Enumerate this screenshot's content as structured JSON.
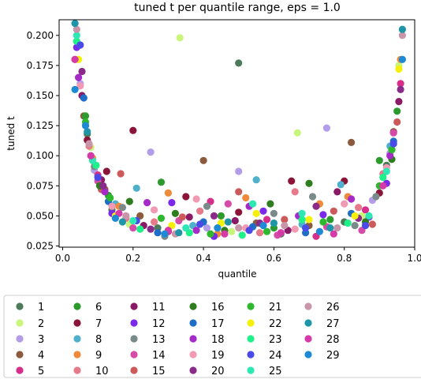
{
  "chart_data": {
    "type": "scatter",
    "title": "tuned t per quantile range, eps = 1.0",
    "xlabel": "quantile",
    "ylabel": "tuned t",
    "xlim": [
      -0.01,
      1.0
    ],
    "ylim": [
      0.024,
      0.213
    ],
    "xticks": [
      0.0,
      0.2,
      0.4,
      0.6,
      0.8,
      1.0
    ],
    "xtick_labels": [
      "0.0",
      "0.2",
      "0.4",
      "0.6",
      "0.8",
      "1.0"
    ],
    "yticks": [
      0.025,
      0.05,
      0.075,
      0.1,
      0.125,
      0.15,
      0.175,
      0.2
    ],
    "ytick_labels": [
      "0.025",
      "0.050",
      "0.075",
      "0.100",
      "0.125",
      "0.150",
      "0.175",
      "0.200"
    ],
    "grid": false,
    "legend_position": "below",
    "series": [
      {
        "name": "1",
        "color": "#4d7a5a",
        "points": [
          [
            0.04,
            0.195
          ],
          [
            0.07,
            0.118
          ],
          [
            0.14,
            0.055
          ],
          [
            0.27,
            0.04
          ],
          [
            0.5,
            0.177
          ],
          [
            0.62,
            0.035
          ],
          [
            0.8,
            0.045
          ],
          [
            0.92,
            0.092
          ]
        ]
      },
      {
        "name": "2",
        "color": "#c8f57a",
        "points": [
          [
            0.045,
            0.18
          ],
          [
            0.08,
            0.107
          ],
          [
            0.19,
            0.043
          ],
          [
            0.333,
            0.198
          ],
          [
            0.48,
            0.037
          ],
          [
            0.667,
            0.119
          ],
          [
            0.85,
            0.05
          ],
          [
            0.955,
            0.175
          ]
        ]
      },
      {
        "name": "3",
        "color": "#b39ce8",
        "points": [
          [
            0.05,
            0.16
          ],
          [
            0.09,
            0.088
          ],
          [
            0.25,
            0.103
          ],
          [
            0.41,
            0.04
          ],
          [
            0.5,
            0.087
          ],
          [
            0.75,
            0.123
          ],
          [
            0.88,
            0.063
          ],
          [
            0.93,
            0.102
          ]
        ]
      },
      {
        "name": "4",
        "color": "#8c5a3c",
        "points": [
          [
            0.06,
            0.133
          ],
          [
            0.12,
            0.072
          ],
          [
            0.22,
            0.05
          ],
          [
            0.4,
            0.096
          ],
          [
            0.55,
            0.044
          ],
          [
            0.7,
            0.042
          ],
          [
            0.82,
            0.111
          ],
          [
            0.94,
            0.12
          ]
        ]
      },
      {
        "name": "5",
        "color": "#d62e8a",
        "points": [
          [
            0.035,
            0.18
          ],
          [
            0.1,
            0.084
          ],
          [
            0.3,
            0.037
          ],
          [
            0.42,
            0.062
          ],
          [
            0.58,
            0.047
          ],
          [
            0.72,
            0.033
          ],
          [
            0.86,
            0.055
          ],
          [
            0.96,
            0.16
          ]
        ]
      },
      {
        "name": "6",
        "color": "#2c9a2c",
        "points": [
          [
            0.065,
            0.133
          ],
          [
            0.13,
            0.067
          ],
          [
            0.28,
            0.078
          ],
          [
            0.45,
            0.05
          ],
          [
            0.6,
            0.04
          ],
          [
            0.76,
            0.047
          ],
          [
            0.9,
            0.096
          ],
          [
            0.95,
            0.137
          ]
        ]
      },
      {
        "name": "7",
        "color": "#8a1538",
        "points": [
          [
            0.07,
            0.113
          ],
          [
            0.125,
            0.087
          ],
          [
            0.2,
            0.121
          ],
          [
            0.35,
            0.066
          ],
          [
            0.5,
            0.053
          ],
          [
            0.65,
            0.079
          ],
          [
            0.8,
            0.079
          ],
          [
            0.9,
            0.069
          ]
        ]
      },
      {
        "name": "8",
        "color": "#4fb0cc",
        "points": [
          [
            0.08,
            0.1
          ],
          [
            0.15,
            0.06
          ],
          [
            0.21,
            0.073
          ],
          [
            0.37,
            0.042
          ],
          [
            0.55,
            0.08
          ],
          [
            0.68,
            0.043
          ],
          [
            0.79,
            0.076
          ],
          [
            0.93,
            0.108
          ]
        ]
      },
      {
        "name": "9",
        "color": "#ee8a3a",
        "points": [
          [
            0.085,
            0.098
          ],
          [
            0.16,
            0.058
          ],
          [
            0.3,
            0.069
          ],
          [
            0.44,
            0.035
          ],
          [
            0.52,
            0.065
          ],
          [
            0.73,
            0.06
          ],
          [
            0.81,
            0.066
          ],
          [
            0.96,
            0.18
          ]
        ]
      },
      {
        "name": "10",
        "color": "#e77a8a",
        "points": [
          [
            0.075,
            0.108
          ],
          [
            0.18,
            0.048
          ],
          [
            0.26,
            0.045
          ],
          [
            0.39,
            0.054
          ],
          [
            0.56,
            0.036
          ],
          [
            0.66,
            0.07
          ],
          [
            0.84,
            0.057
          ],
          [
            0.91,
            0.085
          ]
        ]
      },
      {
        "name": "11",
        "color": "#8a1a66",
        "points": [
          [
            0.055,
            0.15
          ],
          [
            0.11,
            0.08
          ],
          [
            0.23,
            0.042
          ],
          [
            0.36,
            0.049
          ],
          [
            0.49,
            0.046
          ],
          [
            0.64,
            0.038
          ],
          [
            0.78,
            0.07
          ],
          [
            0.955,
            0.145
          ]
        ]
      },
      {
        "name": "12",
        "color": "#7a2ae8",
        "points": [
          [
            0.04,
            0.19
          ],
          [
            0.14,
            0.052
          ],
          [
            0.31,
            0.061
          ],
          [
            0.43,
            0.033
          ],
          [
            0.57,
            0.054
          ],
          [
            0.74,
            0.051
          ],
          [
            0.87,
            0.049
          ],
          [
            0.92,
            0.077
          ]
        ]
      },
      {
        "name": "13",
        "color": "#7a8a8a",
        "points": [
          [
            0.09,
            0.091
          ],
          [
            0.17,
            0.057
          ],
          [
            0.29,
            0.033
          ],
          [
            0.41,
            0.058
          ],
          [
            0.6,
            0.052
          ],
          [
            0.71,
            0.066
          ],
          [
            0.83,
            0.042
          ],
          [
            0.89,
            0.066
          ]
        ]
      },
      {
        "name": "14",
        "color": "#d64aa8",
        "points": [
          [
            0.1,
            0.079
          ],
          [
            0.2,
            0.04
          ],
          [
            0.33,
            0.046
          ],
          [
            0.47,
            0.06
          ],
          [
            0.61,
            0.034
          ],
          [
            0.75,
            0.041
          ],
          [
            0.85,
            0.038
          ],
          [
            0.94,
            0.119
          ]
        ]
      },
      {
        "name": "15",
        "color": "#cc5a5a",
        "points": [
          [
            0.11,
            0.072
          ],
          [
            0.165,
            0.085
          ],
          [
            0.34,
            0.049
          ],
          [
            0.5,
            0.07
          ],
          [
            0.63,
            0.047
          ],
          [
            0.77,
            0.054
          ],
          [
            0.88,
            0.043
          ],
          [
            0.95,
            0.128
          ]
        ]
      },
      {
        "name": "16",
        "color": "#2e7d1e",
        "points": [
          [
            0.105,
            0.075
          ],
          [
            0.19,
            0.062
          ],
          [
            0.32,
            0.052
          ],
          [
            0.46,
            0.038
          ],
          [
            0.59,
            0.06
          ],
          [
            0.7,
            0.077
          ],
          [
            0.86,
            0.045
          ],
          [
            0.935,
            0.097
          ]
        ]
      },
      {
        "name": "17",
        "color": "#1e6ec8",
        "points": [
          [
            0.06,
            0.148
          ],
          [
            0.13,
            0.062
          ],
          [
            0.27,
            0.036
          ],
          [
            0.4,
            0.045
          ],
          [
            0.54,
            0.041
          ],
          [
            0.69,
            0.036
          ],
          [
            0.82,
            0.052
          ],
          [
            0.94,
            0.112
          ]
        ]
      },
      {
        "name": "18",
        "color": "#a52ac8",
        "points": [
          [
            0.045,
            0.165
          ],
          [
            0.12,
            0.07
          ],
          [
            0.24,
            0.061
          ],
          [
            0.38,
            0.038
          ],
          [
            0.53,
            0.058
          ],
          [
            0.67,
            0.05
          ],
          [
            0.82,
            0.064
          ],
          [
            0.93,
            0.1
          ]
        ]
      },
      {
        "name": "19",
        "color": "#f29ab4",
        "points": [
          [
            0.05,
            0.158
          ],
          [
            0.14,
            0.058
          ],
          [
            0.26,
            0.055
          ],
          [
            0.38,
            0.064
          ],
          [
            0.52,
            0.04
          ],
          [
            0.66,
            0.039
          ],
          [
            0.8,
            0.06
          ],
          [
            0.92,
            0.09
          ]
        ]
      },
      {
        "name": "20",
        "color": "#8a2a8a",
        "points": [
          [
            0.055,
            0.17
          ],
          [
            0.115,
            0.075
          ],
          [
            0.25,
            0.039
          ],
          [
            0.43,
            0.05
          ],
          [
            0.56,
            0.044
          ],
          [
            0.72,
            0.058
          ],
          [
            0.84,
            0.048
          ],
          [
            0.96,
            0.155
          ]
        ]
      },
      {
        "name": "21",
        "color": "#2eb82e",
        "points": [
          [
            0.065,
            0.128
          ],
          [
            0.135,
            0.065
          ],
          [
            0.28,
            0.048
          ],
          [
            0.42,
            0.035
          ],
          [
            0.58,
            0.037
          ],
          [
            0.74,
            0.045
          ],
          [
            0.9,
            0.075
          ],
          [
            0.935,
            0.105
          ]
        ]
      },
      {
        "name": "22",
        "color": "#f5f00a",
        "points": [
          [
            0.045,
            0.18
          ],
          [
            0.15,
            0.05
          ],
          [
            0.31,
            0.042
          ],
          [
            0.45,
            0.044
          ],
          [
            0.55,
            0.052
          ],
          [
            0.7,
            0.047
          ],
          [
            0.83,
            0.05
          ],
          [
            0.955,
            0.172
          ]
        ]
      },
      {
        "name": "23",
        "color": "#1ef08a",
        "points": [
          [
            0.04,
            0.195
          ],
          [
            0.095,
            0.092
          ],
          [
            0.22,
            0.039
          ],
          [
            0.36,
            0.036
          ],
          [
            0.51,
            0.034
          ],
          [
            0.68,
            0.047
          ],
          [
            0.81,
            0.044
          ],
          [
            0.91,
            0.082
          ]
        ]
      },
      {
        "name": "24",
        "color": "#4a4ae8",
        "points": [
          [
            0.05,
            0.192
          ],
          [
            0.1,
            0.082
          ],
          [
            0.21,
            0.046
          ],
          [
            0.39,
            0.043
          ],
          [
            0.53,
            0.038
          ],
          [
            0.69,
            0.04
          ],
          [
            0.86,
            0.042
          ],
          [
            0.94,
            0.11
          ]
        ]
      },
      {
        "name": "25",
        "color": "#2ee8b4",
        "points": [
          [
            0.04,
            0.2
          ],
          [
            0.085,
            0.096
          ],
          [
            0.2,
            0.046
          ],
          [
            0.35,
            0.04
          ],
          [
            0.54,
            0.06
          ],
          [
            0.68,
            0.052
          ],
          [
            0.87,
            0.05
          ],
          [
            0.92,
            0.087
          ]
        ]
      },
      {
        "name": "26",
        "color": "#c896a8",
        "points": [
          [
            0.04,
            0.205
          ],
          [
            0.075,
            0.11
          ],
          [
            0.18,
            0.05
          ],
          [
            0.32,
            0.035
          ],
          [
            0.5,
            0.04
          ],
          [
            0.63,
            0.042
          ],
          [
            0.78,
            0.04
          ],
          [
            0.965,
            0.2
          ]
        ]
      },
      {
        "name": "27",
        "color": "#1e96a8",
        "points": [
          [
            0.035,
            0.21
          ],
          [
            0.07,
            0.12
          ],
          [
            0.17,
            0.045
          ],
          [
            0.33,
            0.036
          ],
          [
            0.47,
            0.045
          ],
          [
            0.6,
            0.044
          ],
          [
            0.76,
            0.04
          ],
          [
            0.965,
            0.205
          ]
        ]
      },
      {
        "name": "28",
        "color": "#d63aa8",
        "points": [
          [
            0.035,
            0.18
          ],
          [
            0.08,
            0.1
          ],
          [
            0.16,
            0.052
          ],
          [
            0.3,
            0.038
          ],
          [
            0.46,
            0.035
          ],
          [
            0.62,
            0.036
          ],
          [
            0.77,
            0.035
          ],
          [
            0.91,
            0.075
          ]
        ]
      },
      {
        "name": "29",
        "color": "#1e8ad6",
        "points": [
          [
            0.035,
            0.155
          ],
          [
            0.065,
            0.125
          ],
          [
            0.15,
            0.048
          ],
          [
            0.29,
            0.035
          ],
          [
            0.44,
            0.04
          ],
          [
            0.57,
            0.042
          ],
          [
            0.73,
            0.037
          ],
          [
            0.965,
            0.18
          ]
        ]
      }
    ]
  }
}
